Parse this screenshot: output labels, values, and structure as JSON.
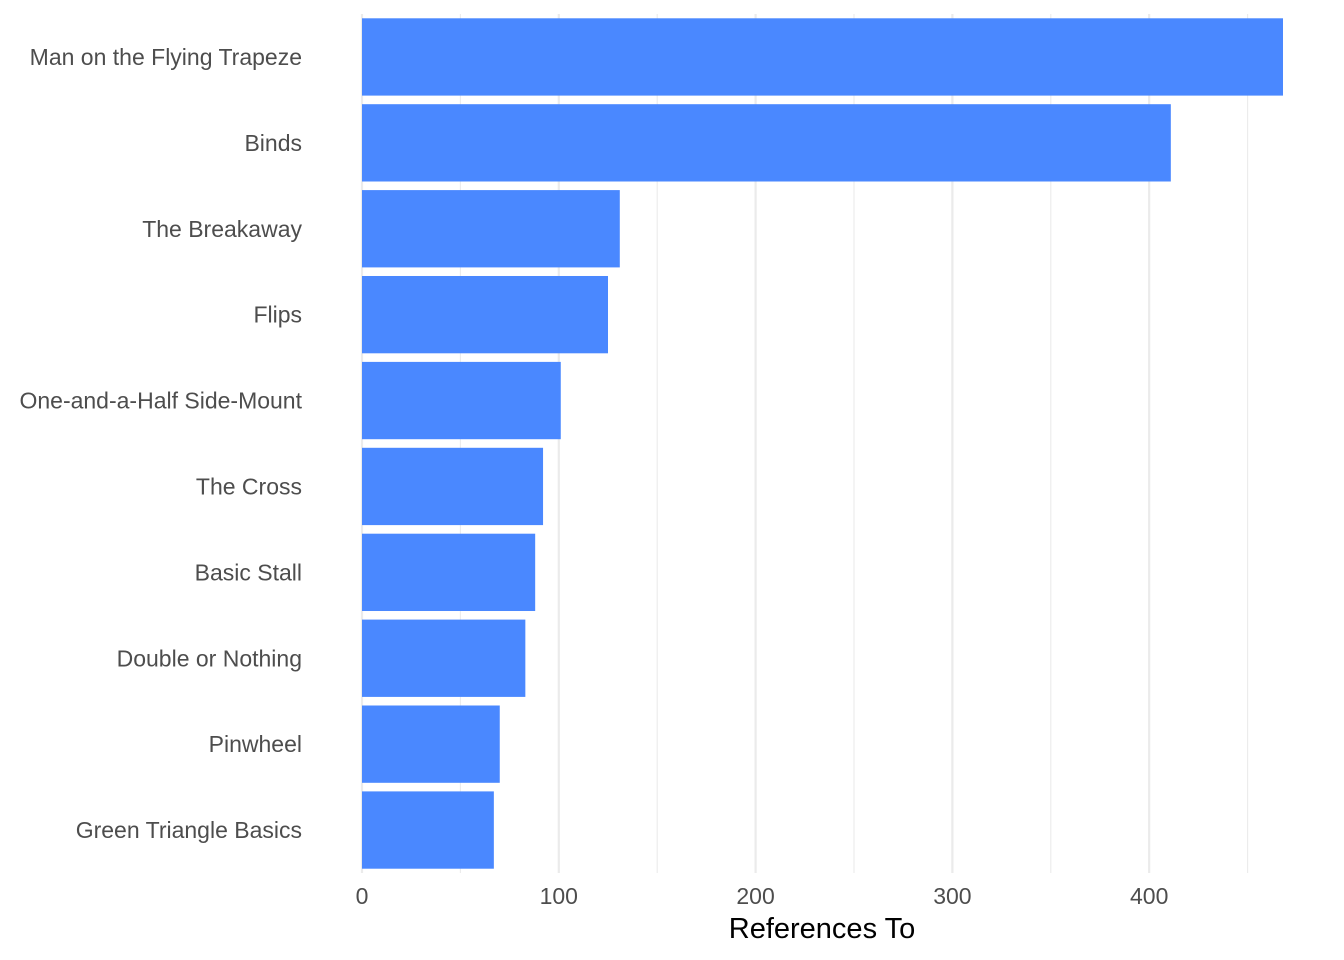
{
  "chart_data": {
    "type": "bar",
    "orientation": "horizontal",
    "title": "",
    "xlabel": "References To",
    "ylabel": "",
    "categories": [
      "Man on the Flying Trapeze",
      "Binds",
      "The Breakaway",
      "Flips",
      "One-and-a-Half Side-Mount",
      "The Cross",
      "Basic Stall",
      "Double or Nothing",
      "Pinwheel",
      "Green Triangle Basics"
    ],
    "values": [
      468,
      411,
      131,
      125,
      101,
      92,
      88,
      83,
      70,
      67
    ],
    "x_ticks": [
      0,
      100,
      200,
      300,
      400
    ],
    "xlim": [
      0,
      468
    ],
    "grid": true,
    "legend": "none",
    "bar_color": "#4a88ff"
  }
}
